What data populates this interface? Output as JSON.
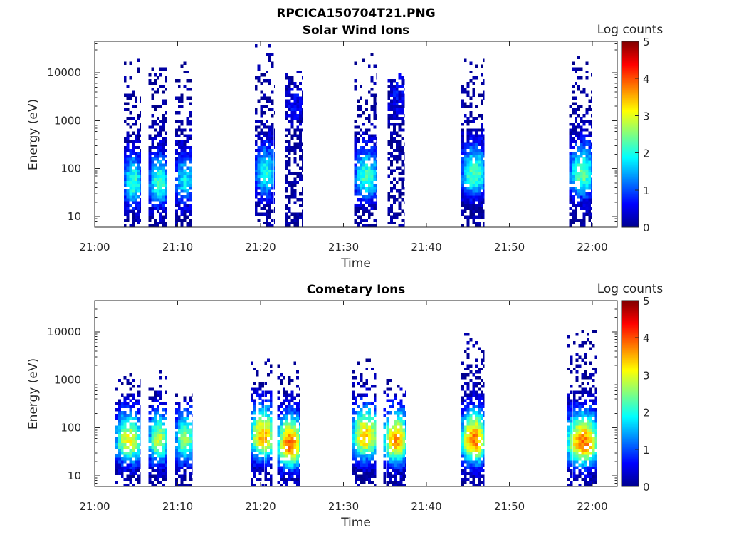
{
  "figure_title": "RPCICA150704T21.PNG",
  "chart_data": [
    {
      "type": "heatmap",
      "title": "Solar Wind Ions",
      "xlabel": "Time",
      "ylabel": "Energy (eV)",
      "x_tick_labels": [
        "21:00",
        "21:10",
        "21:20",
        "21:30",
        "21:40",
        "21:50",
        "22:00"
      ],
      "x_ticks_minutes": [
        0,
        10,
        20,
        30,
        40,
        50,
        60
      ],
      "xlim_minutes": [
        0,
        63
      ],
      "y_scale": "log",
      "y_tick_labels": [
        "10",
        "100",
        "1000",
        "10000"
      ],
      "y_ticks": [
        10,
        100,
        1000,
        10000
      ],
      "ylim": [
        6,
        45000
      ],
      "colorbar": {
        "label": "Log counts",
        "min": 0,
        "max": 5,
        "tick_labels": [
          "0",
          "1",
          "2",
          "3",
          "4",
          "5"
        ],
        "colormap": "jet"
      },
      "bursts": [
        {
          "t_min": 3.5,
          "t_max": 5.5,
          "e_peak": 45,
          "e_max": 18000,
          "peak_log": 2.2
        },
        {
          "t_min": 6.5,
          "t_max": 8.7,
          "e_peak": 45,
          "e_max": 15000,
          "peak_log": 2.2
        },
        {
          "t_min": 9.7,
          "t_max": 11.7,
          "e_peak": 50,
          "e_max": 22000,
          "peak_log": 1.8
        },
        {
          "t_min": 19.3,
          "t_max": 21.7,
          "e_peak": 70,
          "e_max": 35000,
          "peak_log": 2.0
        },
        {
          "t_min": 23.0,
          "t_max": 25.0,
          "e_peak": 2000,
          "e_max": 10000,
          "peak_log": 0.6
        },
        {
          "t_min": 31.3,
          "t_max": 34.0,
          "e_peak": 60,
          "e_max": 28000,
          "peak_log": 2.2
        },
        {
          "t_min": 35.3,
          "t_max": 37.3,
          "e_peak": 3000,
          "e_max": 10000,
          "peak_log": 0.6
        },
        {
          "t_min": 44.2,
          "t_max": 47.0,
          "e_peak": 70,
          "e_max": 17000,
          "peak_log": 2.3
        },
        {
          "t_min": 57.2,
          "t_max": 60.0,
          "e_peak": 70,
          "e_max": 20000,
          "peak_log": 2.4
        }
      ]
    },
    {
      "type": "heatmap",
      "title": "Cometary Ions",
      "xlabel": "Time",
      "ylabel": "Energy (eV)",
      "x_tick_labels": [
        "21:00",
        "21:10",
        "21:20",
        "21:30",
        "21:40",
        "21:50",
        "22:00"
      ],
      "x_ticks_minutes": [
        0,
        10,
        20,
        30,
        40,
        50,
        60
      ],
      "xlim_minutes": [
        0,
        63
      ],
      "y_scale": "log",
      "y_tick_labels": [
        "10",
        "100",
        "1000",
        "10000"
      ],
      "y_ticks": [
        10,
        100,
        1000,
        10000
      ],
      "ylim": [
        6,
        45000
      ],
      "colorbar": {
        "label": "Log counts",
        "min": 0,
        "max": 5,
        "tick_labels": [
          "0",
          "1",
          "2",
          "3",
          "4",
          "5"
        ],
        "colormap": "jet"
      },
      "bursts": [
        {
          "t_min": 2.5,
          "t_max": 5.5,
          "e_peak": 50,
          "e_max": 1500,
          "peak_log": 3.0
        },
        {
          "t_min": 6.5,
          "t_max": 8.7,
          "e_peak": 50,
          "e_max": 1500,
          "peak_log": 2.8
        },
        {
          "t_min": 9.7,
          "t_max": 11.8,
          "e_peak": 50,
          "e_max": 500,
          "peak_log": 2.6
        },
        {
          "t_min": 18.8,
          "t_max": 21.5,
          "e_peak": 60,
          "e_max": 2500,
          "peak_log": 3.5
        },
        {
          "t_min": 22.0,
          "t_max": 24.8,
          "e_peak": 40,
          "e_max": 2200,
          "peak_log": 3.9
        },
        {
          "t_min": 31.0,
          "t_max": 34.0,
          "e_peak": 60,
          "e_max": 2500,
          "peak_log": 3.4
        },
        {
          "t_min": 34.8,
          "t_max": 37.5,
          "e_peak": 50,
          "e_max": 1000,
          "peak_log": 3.6
        },
        {
          "t_min": 44.2,
          "t_max": 47.0,
          "e_peak": 50,
          "e_max": 10000,
          "peak_log": 3.8
        },
        {
          "t_min": 57.0,
          "t_max": 60.5,
          "e_peak": 45,
          "e_max": 10000,
          "peak_log": 3.8
        }
      ]
    }
  ]
}
